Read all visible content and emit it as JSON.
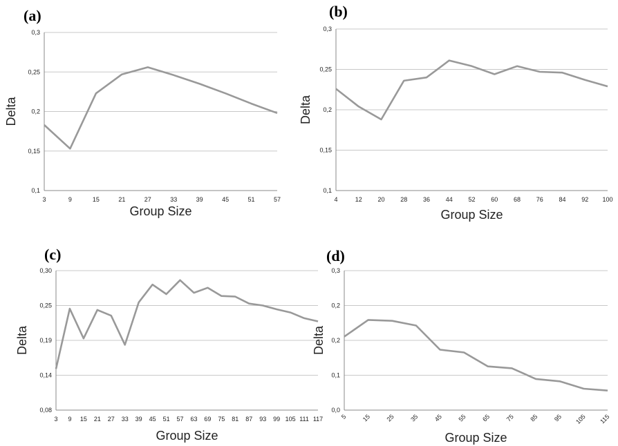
{
  "chart_data": [
    {
      "type": "line",
      "panel_label": "(a)",
      "xlabel": "Group Size",
      "ylabel": "Delta",
      "ylim": [
        0.1,
        0.3
      ],
      "yticks": [
        "0,1",
        "0,15",
        "0,2",
        "0,25",
        "0,3"
      ],
      "x": [
        "3",
        "9",
        "15",
        "21",
        "27",
        "33",
        "39",
        "45",
        "51",
        "57"
      ],
      "values": [
        0.183,
        0.153,
        0.223,
        0.247,
        0.256,
        0.246,
        0.235,
        0.223,
        0.21,
        0.198
      ],
      "color": "#999999",
      "grid": true
    },
    {
      "type": "line",
      "panel_label": "(b)",
      "xlabel": "Group Size",
      "ylabel": "Delta",
      "ylim": [
        0.1,
        0.3
      ],
      "yticks": [
        "0,1",
        "0,15",
        "0,2",
        "0,25",
        "0,3"
      ],
      "x": [
        "4",
        "12",
        "20",
        "28",
        "36",
        "44",
        "52",
        "60",
        "68",
        "76",
        "84",
        "92",
        "100"
      ],
      "values": [
        0.226,
        0.204,
        0.188,
        0.236,
        0.24,
        0.261,
        0.254,
        0.244,
        0.254,
        0.247,
        0.246,
        0.237,
        0.229
      ],
      "color": "#999999",
      "grid": true
    },
    {
      "type": "line",
      "panel_label": "(c)",
      "xlabel": "Group Size",
      "ylabel": "Delta",
      "ylim": [
        0.08,
        0.3
      ],
      "yticks": [
        "0,08",
        "0,14",
        "0,19",
        "0,25",
        "0,30"
      ],
      "x": [
        "3",
        "9",
        "15",
        "21",
        "27",
        "33",
        "39",
        "45",
        "51",
        "57",
        "63",
        "69",
        "75",
        "81",
        "87",
        "93",
        "99",
        "105",
        "111",
        "117"
      ],
      "values": [
        0.145,
        0.24,
        0.193,
        0.238,
        0.229,
        0.183,
        0.25,
        0.278,
        0.263,
        0.285,
        0.265,
        0.273,
        0.26,
        0.259,
        0.248,
        0.245,
        0.239,
        0.234,
        0.225,
        0.22
      ],
      "color": "#999999",
      "grid": true
    },
    {
      "type": "line",
      "panel_label": "(d)",
      "xlabel": "Group Size",
      "ylabel": "Delta",
      "ylim": [
        0.0,
        0.3
      ],
      "yticks": [
        "0,0",
        "0,1",
        "0,2",
        "0,2",
        "0,3"
      ],
      "x": [
        "5",
        "15",
        "25",
        "35",
        "45",
        "55",
        "65",
        "75",
        "85",
        "95",
        "105",
        "115"
      ],
      "values": [
        0.158,
        0.194,
        0.192,
        0.182,
        0.13,
        0.124,
        0.094,
        0.09,
        0.067,
        0.062,
        0.046,
        0.042
      ],
      "color": "#999999",
      "grid": true
    }
  ]
}
